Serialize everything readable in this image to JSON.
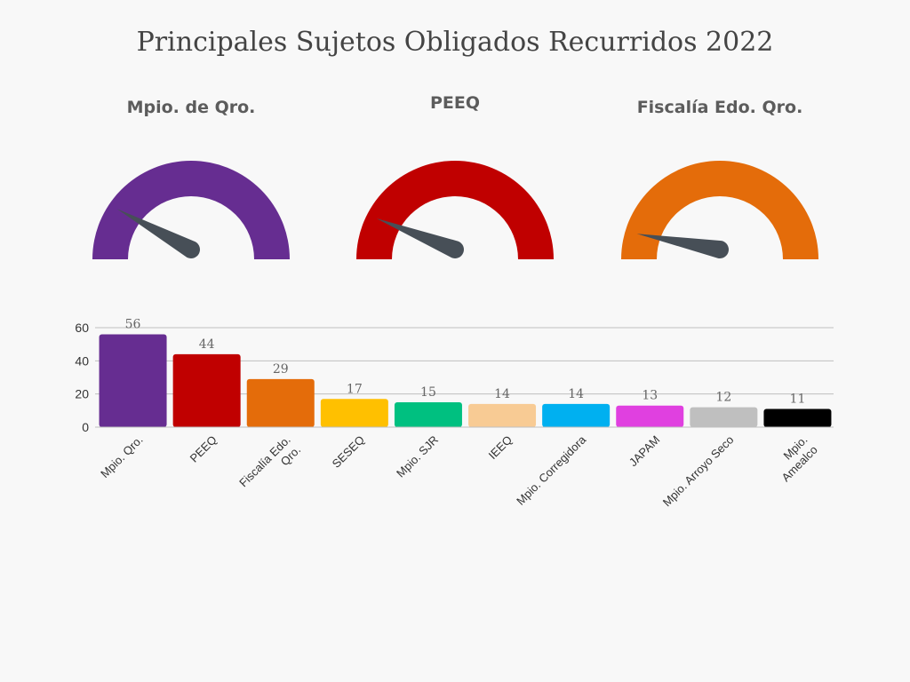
{
  "title": "Principales Sujetos Obligados Recurridos 2022",
  "chart_data": [
    {
      "type": "gauge",
      "title": "Mpio. de Qro.",
      "value": 0.16,
      "color": "#662d91"
    },
    {
      "type": "gauge",
      "title": "PEEQ",
      "value": 0.12,
      "color": "#c00000"
    },
    {
      "type": "gauge",
      "title": "Fiscalía Edo. Qro.",
      "value": 0.06,
      "color": "#e46c0a"
    },
    {
      "type": "bar",
      "categories": [
        "Mpio. Qro.",
        "PEEQ",
        "Fiscalía Edo. Qro.",
        "SESEQ",
        "Mpio. SJR",
        "IEEQ",
        "Mpio. Corregidora",
        "JAPAM",
        "Mpio. Arroyo Seco",
        "Mpio. Amealco"
      ],
      "values": [
        56,
        44,
        29,
        17,
        15,
        14,
        14,
        13,
        12,
        11
      ],
      "colors": [
        "#662d91",
        "#c00000",
        "#e46c0a",
        "#ffc000",
        "#00c080",
        "#f8cb94",
        "#00b0f0",
        "#e040e0",
        "#bfbfbf",
        "#000000"
      ],
      "ylim": [
        0,
        60
      ],
      "yticks": [
        0,
        20,
        40,
        60
      ],
      "grid": true,
      "legend": "none"
    }
  ]
}
